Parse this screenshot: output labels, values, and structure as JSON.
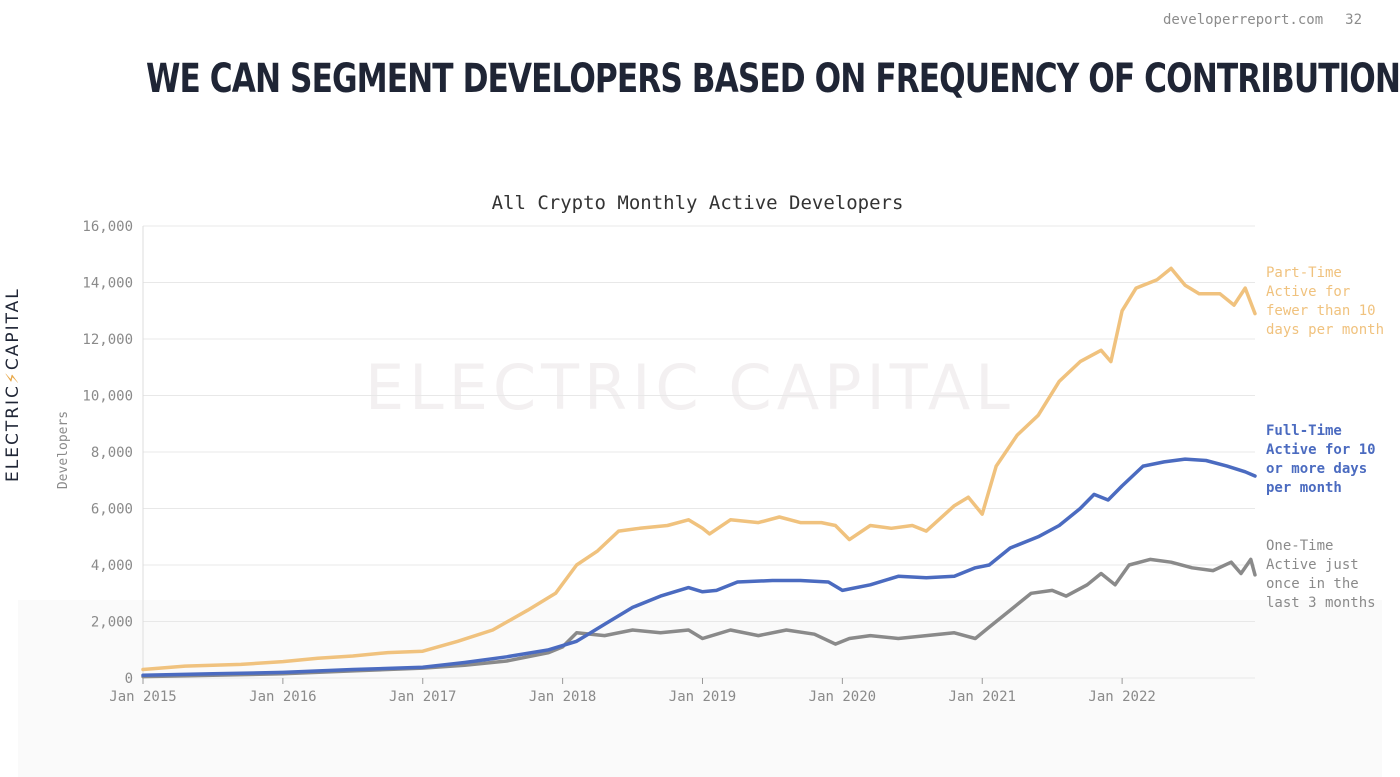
{
  "header": {
    "site": "developerreport.com",
    "page": "32"
  },
  "slide_title": "WE CAN SEGMENT DEVELOPERS BASED ON FREQUENCY OF CONTRIBUTION",
  "brand": {
    "left": "ELECTRIC",
    "right": "CAPITAL",
    "watermark": "ELECTRIC CAPITAL"
  },
  "colors": {
    "part_time": "#f0c27e",
    "full_time": "#4b6bc0",
    "one_time": "#8a8a8a",
    "grid": "#e8e8e8",
    "title": "#1f2535"
  },
  "chart_data": {
    "type": "line",
    "title": "All Crypto Monthly Active Developers",
    "xlabel": "",
    "ylabel": "Developers",
    "xlim": [
      2015.0,
      2022.95
    ],
    "ylim": [
      0,
      16000
    ],
    "grid": true,
    "x_ticks": [
      "Jan 2015",
      "Jan 2016",
      "Jan 2017",
      "Jan 2018",
      "Jan 2019",
      "Jan 2020",
      "Jan 2021",
      "Jan 2022"
    ],
    "y_ticks": [
      "0",
      "2,000",
      "4,000",
      "6,000",
      "8,000",
      "10,000",
      "12,000",
      "14,000",
      "16,000"
    ],
    "series": [
      {
        "key": "part_time",
        "name": "Part-Time",
        "legend_lines": [
          "Part-Time",
          "Active for",
          "fewer than 10",
          "days per month"
        ],
        "x": [
          2015.0,
          2015.3,
          2015.7,
          2016.0,
          2016.25,
          2016.5,
          2016.75,
          2017.0,
          2017.25,
          2017.5,
          2017.75,
          2017.95,
          2018.1,
          2018.25,
          2018.4,
          2018.55,
          2018.75,
          2018.9,
          2019.0,
          2019.05,
          2019.2,
          2019.4,
          2019.55,
          2019.7,
          2019.85,
          2019.95,
          2020.05,
          2020.2,
          2020.35,
          2020.5,
          2020.6,
          2020.8,
          2020.9,
          2021.0,
          2021.1,
          2021.25,
          2021.4,
          2021.55,
          2021.7,
          2021.85,
          2021.92,
          2022.0,
          2022.1,
          2022.25,
          2022.35,
          2022.45,
          2022.55,
          2022.7,
          2022.8,
          2022.88,
          2022.95
        ],
        "y": [
          300,
          420,
          480,
          580,
          700,
          780,
          900,
          950,
          1300,
          1700,
          2400,
          3000,
          4000,
          4500,
          5200,
          5300,
          5400,
          5600,
          5300,
          5100,
          5600,
          5500,
          5700,
          5500,
          5500,
          5400,
          4900,
          5400,
          5300,
          5400,
          5200,
          6100,
          6400,
          5800,
          7500,
          8600,
          9300,
          10500,
          11200,
          11600,
          11200,
          13000,
          13800,
          14100,
          14500,
          13900,
          13600,
          13600,
          13200,
          13800,
          12900
        ]
      },
      {
        "key": "full_time",
        "name": "Full-Time",
        "legend_lines": [
          "Full-Time",
          "Active for 10",
          "or more days",
          "per month"
        ],
        "x": [
          2015.0,
          2015.5,
          2016.0,
          2016.5,
          2017.0,
          2017.3,
          2017.6,
          2017.9,
          2018.1,
          2018.3,
          2018.5,
          2018.7,
          2018.9,
          2019.0,
          2019.1,
          2019.25,
          2019.5,
          2019.7,
          2019.9,
          2020.0,
          2020.2,
          2020.4,
          2020.6,
          2020.8,
          2020.95,
          2021.05,
          2021.2,
          2021.4,
          2021.55,
          2021.7,
          2021.8,
          2021.9,
          2022.0,
          2022.15,
          2022.3,
          2022.45,
          2022.6,
          2022.75,
          2022.88,
          2022.95
        ],
        "y": [
          100,
          150,
          200,
          300,
          380,
          550,
          750,
          1000,
          1300,
          1900,
          2500,
          2900,
          3200,
          3050,
          3100,
          3400,
          3450,
          3450,
          3400,
          3100,
          3300,
          3600,
          3550,
          3600,
          3900,
          4000,
          4600,
          5000,
          5400,
          6000,
          6500,
          6300,
          6800,
          7500,
          7650,
          7750,
          7700,
          7500,
          7300,
          7150
        ]
      },
      {
        "key": "one_time",
        "name": "One-Time",
        "legend_lines": [
          "One-Time",
          "Active just",
          "once in the",
          "last 3 months"
        ],
        "x": [
          2015.0,
          2015.5,
          2016.0,
          2016.5,
          2017.0,
          2017.3,
          2017.6,
          2017.9,
          2018.0,
          2018.1,
          2018.3,
          2018.5,
          2018.7,
          2018.9,
          2019.0,
          2019.2,
          2019.4,
          2019.6,
          2019.8,
          2019.95,
          2020.05,
          2020.2,
          2020.4,
          2020.6,
          2020.8,
          2020.95,
          2021.05,
          2021.2,
          2021.35,
          2021.5,
          2021.6,
          2021.75,
          2021.85,
          2021.95,
          2022.05,
          2022.2,
          2022.35,
          2022.5,
          2022.65,
          2022.78,
          2022.85,
          2022.92,
          2022.95
        ],
        "y": [
          50,
          100,
          150,
          250,
          350,
          450,
          600,
          900,
          1100,
          1600,
          1500,
          1700,
          1600,
          1700,
          1400,
          1700,
          1500,
          1700,
          1550,
          1200,
          1400,
          1500,
          1400,
          1500,
          1600,
          1400,
          1800,
          2400,
          3000,
          3100,
          2900,
          3300,
          3700,
          3300,
          4000,
          4200,
          4100,
          3900,
          3800,
          4100,
          3700,
          4200,
          3650
        ]
      }
    ]
  }
}
